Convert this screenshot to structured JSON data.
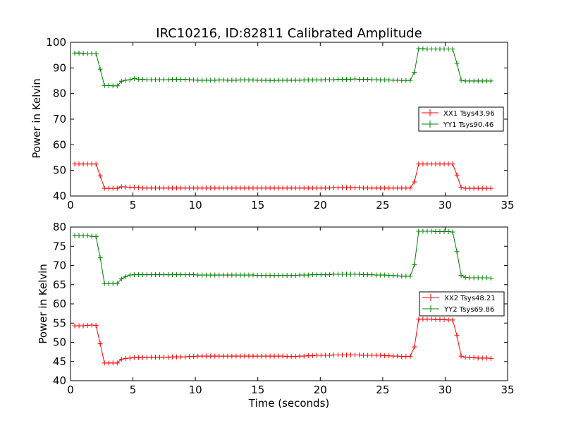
{
  "chart_data": [
    {
      "type": "line",
      "title": "IRC10216, ID:82811 Calibrated Amplitude",
      "xlabel": "",
      "ylabel": "Power in Kelvin",
      "xlim": [
        0,
        35
      ],
      "ylim": [
        40,
        100
      ],
      "xticks": [
        0,
        5,
        10,
        15,
        20,
        25,
        30,
        35
      ],
      "yticks": [
        40,
        50,
        60,
        70,
        80,
        90,
        100
      ],
      "grid": false,
      "legend_position": "center-right",
      "x": [
        0.34,
        0.68,
        1.02,
        1.36,
        1.7,
        2.04,
        2.38,
        2.72,
        3.06,
        3.4,
        3.74,
        4.08,
        4.42,
        4.76,
        5.1,
        5.44,
        5.78,
        6.12,
        6.46,
        6.8,
        7.14,
        7.48,
        7.82,
        8.16,
        8.5,
        8.84,
        9.18,
        9.52,
        9.86,
        10.2,
        10.54,
        10.88,
        11.22,
        11.56,
        11.9,
        12.24,
        12.58,
        12.92,
        13.26,
        13.6,
        13.94,
        14.28,
        14.62,
        14.96,
        15.3,
        15.64,
        15.98,
        16.32,
        16.66,
        17.0,
        17.34,
        17.68,
        18.02,
        18.36,
        18.7,
        19.04,
        19.38,
        19.72,
        20.06,
        20.4,
        20.74,
        21.08,
        21.42,
        21.76,
        22.1,
        22.44,
        22.78,
        23.12,
        23.46,
        23.8,
        24.14,
        24.48,
        24.82,
        25.16,
        25.5,
        25.84,
        26.18,
        26.52,
        26.86,
        27.2,
        27.54,
        27.88,
        28.22,
        28.56,
        28.9,
        29.24,
        29.58,
        29.92,
        30.26,
        30.6,
        30.94,
        31.28,
        31.62,
        31.96,
        32.3,
        32.64,
        32.98,
        33.32,
        33.66
      ],
      "series": [
        {
          "name": "XX1 Tsys43.96",
          "color": "#ff0000",
          "values": [
            52.5,
            52.5,
            52.5,
            52.5,
            52.5,
            52.5,
            47.8,
            43.0,
            43.0,
            43.0,
            43.0,
            43.6,
            43.5,
            43.4,
            43.3,
            43.2,
            43.1,
            43.1,
            43.1,
            43.1,
            43.1,
            43.1,
            43.1,
            43.1,
            43.1,
            43.1,
            43.1,
            43.1,
            43.1,
            43.1,
            43.1,
            43.1,
            43.1,
            43.1,
            43.1,
            43.1,
            43.1,
            43.1,
            43.1,
            43.1,
            43.1,
            43.1,
            43.1,
            43.1,
            43.1,
            43.1,
            43.1,
            43.1,
            43.1,
            43.1,
            43.1,
            43.1,
            43.1,
            43.1,
            43.1,
            43.1,
            43.1,
            43.1,
            43.1,
            43.1,
            43.1,
            43.2,
            43.2,
            43.2,
            43.2,
            43.2,
            43.2,
            43.2,
            43.1,
            43.1,
            43.1,
            43.1,
            43.1,
            43.1,
            43.1,
            43.1,
            43.1,
            43.1,
            43.1,
            43.1,
            45.5,
            52.5,
            52.5,
            52.5,
            52.5,
            52.5,
            52.5,
            52.5,
            52.5,
            52.5,
            48.2,
            43.3,
            43.0,
            43.0,
            43.0,
            43.0,
            43.0,
            43.0,
            43.0
          ]
        },
        {
          "name": "YY1 Tsys90.46",
          "color": "#008000",
          "values": [
            95.8,
            95.8,
            95.7,
            95.6,
            95.6,
            95.6,
            89.5,
            83.1,
            83.1,
            83.0,
            83.0,
            84.8,
            85.2,
            85.4,
            85.9,
            85.6,
            85.5,
            85.4,
            85.4,
            85.4,
            85.4,
            85.4,
            85.4,
            85.5,
            85.5,
            85.5,
            85.5,
            85.4,
            85.3,
            85.2,
            85.2,
            85.2,
            85.2,
            85.2,
            85.3,
            85.3,
            85.2,
            85.2,
            85.2,
            85.3,
            85.3,
            85.3,
            85.3,
            85.2,
            85.2,
            85.2,
            85.1,
            85.1,
            85.2,
            85.2,
            85.2,
            85.2,
            85.2,
            85.2,
            85.3,
            85.3,
            85.3,
            85.3,
            85.3,
            85.4,
            85.4,
            85.4,
            85.5,
            85.5,
            85.5,
            85.6,
            85.7,
            85.5,
            85.5,
            85.5,
            85.4,
            85.4,
            85.3,
            85.3,
            85.3,
            85.2,
            85.2,
            85.1,
            85.1,
            85.1,
            88.3,
            97.5,
            97.5,
            97.4,
            97.4,
            97.4,
            97.4,
            97.4,
            97.4,
            97.4,
            91.8,
            85.2,
            84.9,
            84.9,
            84.9,
            84.9,
            84.9,
            84.9,
            84.9
          ]
        }
      ]
    },
    {
      "type": "line",
      "title": "",
      "xlabel": "Time (seconds)",
      "ylabel": "Power in Kelvin",
      "xlim": [
        0,
        35
      ],
      "ylim": [
        40,
        80
      ],
      "xticks": [
        0,
        5,
        10,
        15,
        20,
        25,
        30,
        35
      ],
      "yticks": [
        40,
        45,
        50,
        55,
        60,
        65,
        70,
        75,
        80
      ],
      "grid": false,
      "legend_position": "center-right",
      "x": [
        0.34,
        0.68,
        1.02,
        1.36,
        1.7,
        2.04,
        2.38,
        2.72,
        3.06,
        3.4,
        3.74,
        4.08,
        4.42,
        4.76,
        5.1,
        5.44,
        5.78,
        6.12,
        6.46,
        6.8,
        7.14,
        7.48,
        7.82,
        8.16,
        8.5,
        8.84,
        9.18,
        9.52,
        9.86,
        10.2,
        10.54,
        10.88,
        11.22,
        11.56,
        11.9,
        12.24,
        12.58,
        12.92,
        13.26,
        13.6,
        13.94,
        14.28,
        14.62,
        14.96,
        15.3,
        15.64,
        15.98,
        16.32,
        16.66,
        17.0,
        17.34,
        17.68,
        18.02,
        18.36,
        18.7,
        19.04,
        19.38,
        19.72,
        20.06,
        20.4,
        20.74,
        21.08,
        21.42,
        21.76,
        22.1,
        22.44,
        22.78,
        23.12,
        23.46,
        23.8,
        24.14,
        24.48,
        24.82,
        25.16,
        25.5,
        25.84,
        26.18,
        26.52,
        26.86,
        27.2,
        27.54,
        27.88,
        28.22,
        28.56,
        28.9,
        29.24,
        29.58,
        29.92,
        30.26,
        30.6,
        30.94,
        31.28,
        31.62,
        31.96,
        32.3,
        32.64,
        32.98,
        33.32,
        33.66
      ],
      "series": [
        {
          "name": "XX2 Tsys48.21",
          "color": "#ff0000",
          "values": [
            54.3,
            54.3,
            54.3,
            54.4,
            54.5,
            54.4,
            49.6,
            44.6,
            44.6,
            44.6,
            44.6,
            45.6,
            45.8,
            45.9,
            46.0,
            46.0,
            46.0,
            46.0,
            46.1,
            46.1,
            46.1,
            46.1,
            46.1,
            46.2,
            46.2,
            46.2,
            46.2,
            46.3,
            46.3,
            46.4,
            46.4,
            46.4,
            46.4,
            46.4,
            46.4,
            46.4,
            46.4,
            46.4,
            46.4,
            46.4,
            46.4,
            46.4,
            46.4,
            46.4,
            46.4,
            46.4,
            46.4,
            46.4,
            46.4,
            46.4,
            46.3,
            46.3,
            46.3,
            46.4,
            46.4,
            46.5,
            46.5,
            46.6,
            46.6,
            46.6,
            46.6,
            46.7,
            46.7,
            46.7,
            46.7,
            46.7,
            46.7,
            46.7,
            46.6,
            46.6,
            46.6,
            46.6,
            46.6,
            46.5,
            46.5,
            46.4,
            46.4,
            46.3,
            46.3,
            46.3,
            48.8,
            56.0,
            56.0,
            56.0,
            56.0,
            55.9,
            55.9,
            55.9,
            55.8,
            55.8,
            51.8,
            46.4,
            46.1,
            46.0,
            46.0,
            45.9,
            45.9,
            45.9,
            45.8
          ]
        },
        {
          "name": "YY2 Tsys69.86",
          "color": "#008000",
          "values": [
            77.7,
            77.7,
            77.7,
            77.7,
            77.6,
            77.5,
            72.0,
            65.3,
            65.3,
            65.3,
            65.3,
            66.5,
            67.1,
            67.5,
            67.6,
            67.6,
            67.6,
            67.6,
            67.6,
            67.6,
            67.6,
            67.6,
            67.6,
            67.6,
            67.6,
            67.6,
            67.6,
            67.6,
            67.6,
            67.5,
            67.5,
            67.5,
            67.5,
            67.5,
            67.5,
            67.5,
            67.5,
            67.5,
            67.5,
            67.5,
            67.5,
            67.5,
            67.5,
            67.4,
            67.4,
            67.4,
            67.4,
            67.4,
            67.4,
            67.4,
            67.4,
            67.4,
            67.4,
            67.5,
            67.5,
            67.5,
            67.6,
            67.6,
            67.6,
            67.6,
            67.6,
            67.7,
            67.7,
            67.7,
            67.7,
            67.7,
            67.7,
            67.7,
            67.6,
            67.6,
            67.6,
            67.5,
            67.5,
            67.5,
            67.4,
            67.4,
            67.3,
            67.2,
            67.2,
            67.2,
            70.2,
            78.9,
            78.9,
            78.9,
            78.9,
            78.8,
            78.8,
            78.8,
            78.8,
            78.7,
            73.6,
            67.4,
            66.9,
            66.8,
            66.8,
            66.8,
            66.8,
            66.8,
            66.7
          ]
        }
      ]
    }
  ]
}
